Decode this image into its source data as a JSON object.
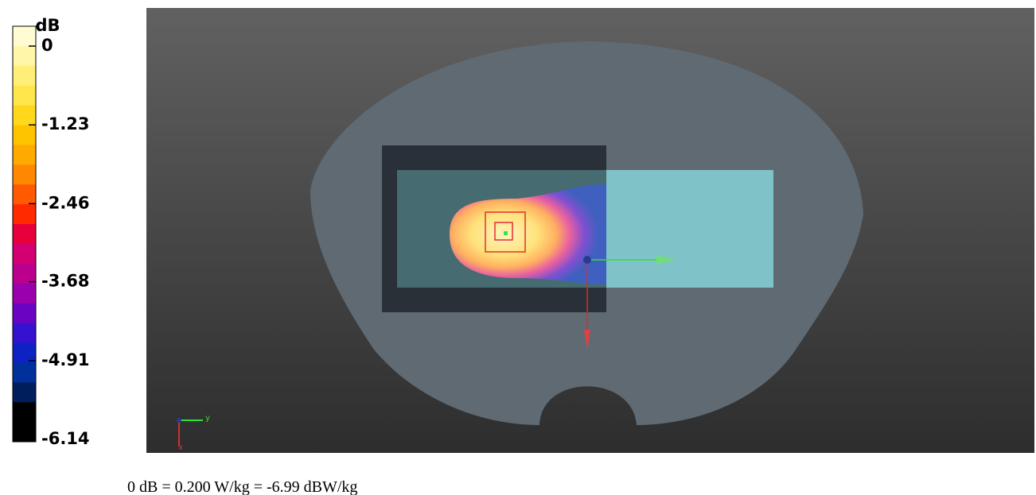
{
  "colorbar": {
    "title": "dB",
    "ticks": [
      0,
      -1.23,
      -2.46,
      -3.68,
      -4.91,
      -6.14
    ],
    "colors": [
      "#fffbd2",
      "#fff6a8",
      "#ffef78",
      "#ffe64a",
      "#ffd81e",
      "#ffc400",
      "#ffaa00",
      "#ff8800",
      "#ff5a00",
      "#ff2a00",
      "#e8003c",
      "#d20070",
      "#bc008e",
      "#9a00ac",
      "#6a04c2",
      "#3612d0",
      "#0e22c4",
      "#00309c",
      "#001e5c",
      "#000000",
      "#000000"
    ]
  },
  "view": {
    "axis_y": "y",
    "axis_x": "x"
  },
  "caption": "0 dB = 0.200 W/kg = -6.99 dBW/kg"
}
